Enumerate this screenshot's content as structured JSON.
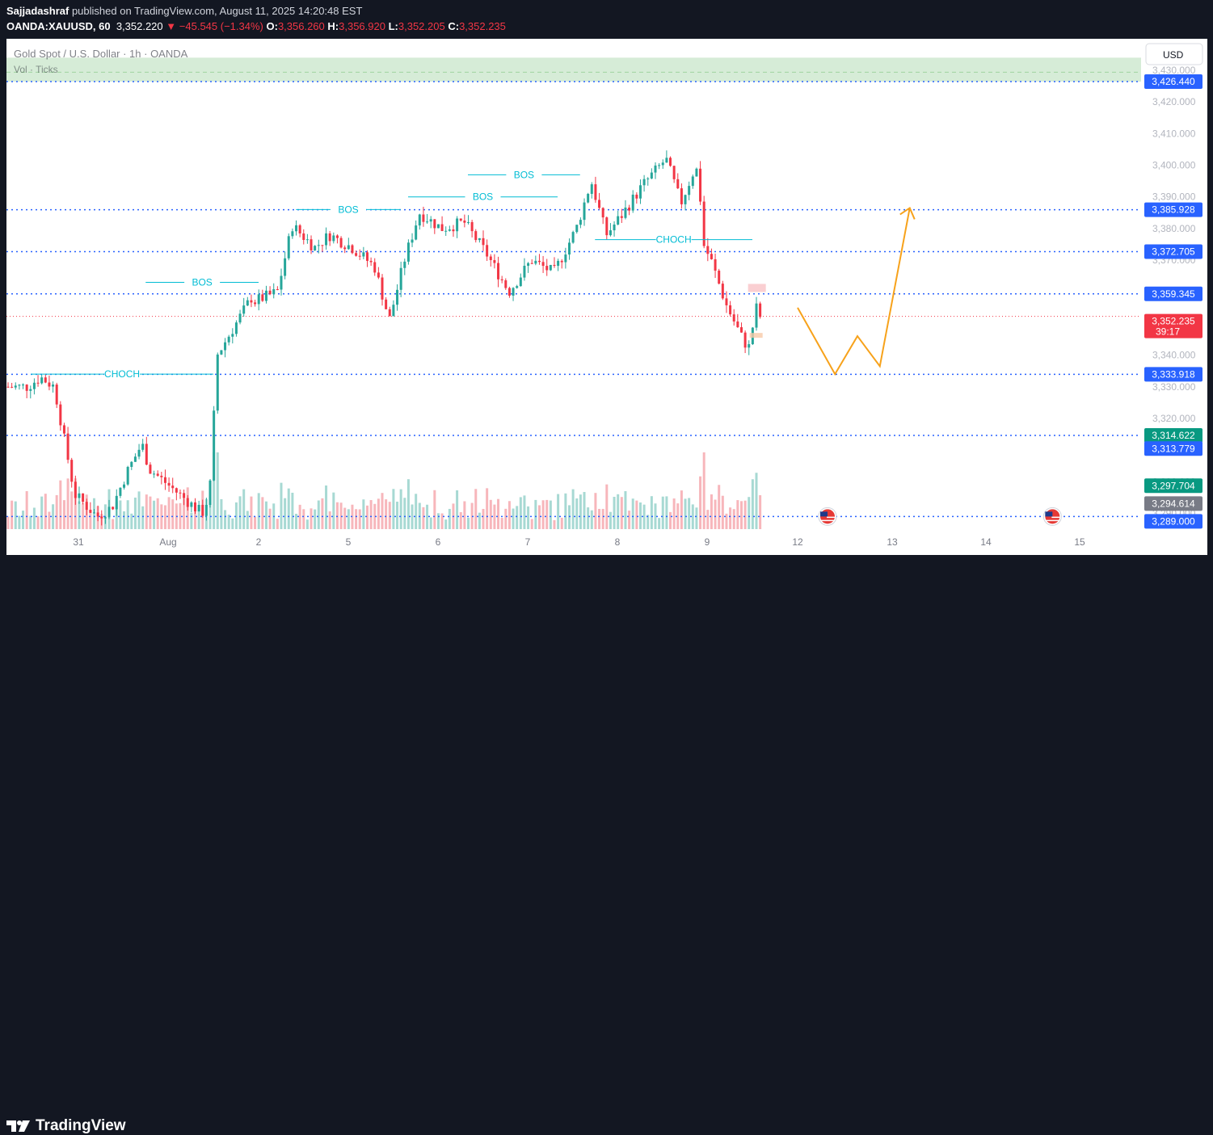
{
  "header": {
    "author": "Sajjadashraf",
    "published_text": "published on TradingView.com, August 11, 2025 14:20:48 EST",
    "symbol": "OANDA:XAUUSD, 60",
    "last": "3,352.220",
    "change": "−45.545 (−1.34%)",
    "open_label": "O:",
    "open": "3,356.260",
    "high_label": "H:",
    "high": "3,356.920",
    "low_label": "L:",
    "low": "3,352.205",
    "close_label": "C:",
    "close": "3,352.235"
  },
  "legend": {
    "title": "Gold Spot / U.S. Dollar · 1h · OANDA",
    "volume": "Vol · Ticks"
  },
  "currency_button": "USD",
  "footer": {
    "brand": "TradingView"
  },
  "colors": {
    "up": "#26a69a",
    "down": "#f23645",
    "level": "#2962ff",
    "projection": "#f7a21b",
    "annotation": "#00bcd4"
  },
  "chart_data": {
    "type": "candlestick",
    "symbol": "XAUUSD",
    "interval": "1h",
    "ylim": [
      3284,
      3437
    ],
    "y_ticks": [
      3290,
      3300,
      3310,
      3320,
      3330,
      3340,
      3350,
      3360,
      3370,
      3380,
      3390,
      3400,
      3410,
      3420,
      3430
    ],
    "x_ticks": [
      "31",
      "Aug",
      "2",
      "5",
      "6",
      "7",
      "8",
      "9",
      "12",
      "13",
      "14",
      "15"
    ],
    "horizontal_levels": [
      {
        "value": 3426.44,
        "label": "3,426.440",
        "color": "#2962ff"
      },
      {
        "value": 3385.928,
        "label": "3,385.928",
        "color": "#2962ff"
      },
      {
        "value": 3372.705,
        "label": "3,372.705",
        "color": "#2962ff"
      },
      {
        "value": 3359.345,
        "label": "3,359.345",
        "color": "#2962ff"
      },
      {
        "value": 3333.918,
        "label": "3,333.918",
        "color": "#2962ff"
      },
      {
        "value": 3314.622,
        "label": "3,314.622",
        "color": "#089981"
      },
      {
        "value": 3289.0,
        "label": "3,289.000",
        "color": "#2962ff"
      }
    ],
    "price_tags": [
      {
        "value": 3352.235,
        "label": "3,352.235",
        "sublabel": "39:17",
        "color": "#f23645"
      },
      {
        "value": 3313.779,
        "label": "3,313.779",
        "color": "#2962ff"
      },
      {
        "value": 3297.704,
        "label": "3,297.704",
        "color": "#089981"
      },
      {
        "value": 3294.614,
        "label": "3,294.614",
        "color": "#787b86"
      }
    ],
    "supply_zone": [
      3426.44,
      3434.0
    ],
    "annotations": [
      {
        "text": "CHOCH",
        "x1": "Jul 30 10:00",
        "x2": "Aug 1 12:00",
        "y": 3334.0
      },
      {
        "text": "BOS",
        "x1": "Jul 31 18:00",
        "x2": "Aug 3 22:00",
        "y": 3363.0
      },
      {
        "text": "BOS",
        "x1": "Aug 4 10:00",
        "x2": "Aug 5 14:00",
        "y": 3386.0
      },
      {
        "text": "BOS",
        "x1": "Aug 5 16:00",
        "x2": "Aug 7 08:00",
        "y": 3390.0
      },
      {
        "text": "BOS",
        "x1": "Aug 6 08:00",
        "x2": "Aug 7 14:00",
        "y": 3397.0
      },
      {
        "text": "CHOCH",
        "x1": "Aug 7 18:00",
        "x2": "Aug 11 12:00",
        "y": 3376.5
      }
    ],
    "projection": {
      "description_points": [
        {
          "x": "Aug 12 00:00",
          "y": 3355.0
        },
        {
          "x": "Aug 12 10:00",
          "y": 3334.0
        },
        {
          "x": "Aug 12 16:00",
          "y": 3346.0
        },
        {
          "x": "Aug 12 22:00",
          "y": 3336.5
        },
        {
          "x": "Aug 13 06:00",
          "y": 3386.5
        }
      ]
    },
    "price_path": [
      [
        "Jul 30 10:00",
        3330
      ],
      [
        "Jul 30 14:00",
        3333
      ],
      [
        "Jul 30 18:00",
        3330
      ],
      [
        "Jul 31 00:00",
        3296
      ],
      [
        "Jul 31 06:00",
        3289
      ],
      [
        "Jul 31 10:00",
        3292
      ],
      [
        "Jul 31 14:00",
        3303
      ],
      [
        "Jul 31 18:00",
        3312
      ],
      [
        "Jul 31 20:00",
        3304
      ],
      [
        "Aug 1 00:00",
        3300
      ],
      [
        "Aug 1 06:00",
        3294
      ],
      [
        "Aug 1 10:00",
        3290
      ],
      [
        "Aug 1 12:00",
        3296
      ],
      [
        "Aug 1 14:00",
        3340
      ],
      [
        "Aug 1 20:00",
        3352
      ],
      [
        "Aug 2 02:00",
        3360
      ],
      [
        "Aug 4 00:00",
        3357
      ],
      [
        "Aug 4 06:00",
        3360
      ],
      [
        "Aug 4 10:00",
        3381
      ],
      [
        "Aug 4 16:00",
        3374
      ],
      [
        "Aug 4 20:00",
        3378
      ],
      [
        "Aug 5 02:00",
        3374
      ],
      [
        "Aug 5 08:00",
        3368
      ],
      [
        "Aug 5 12:00",
        3351
      ],
      [
        "Aug 5 16:00",
        3370
      ],
      [
        "Aug 5 20:00",
        3385
      ],
      [
        "Aug 6 02:00",
        3380
      ],
      [
        "Aug 6 08:00",
        3382
      ],
      [
        "Aug 6 14:00",
        3372
      ],
      [
        "Aug 6 20:00",
        3360
      ],
      [
        "Aug 7 02:00",
        3370
      ],
      [
        "Aug 7 08:00",
        3366
      ],
      [
        "Aug 7 14:00",
        3380
      ],
      [
        "Aug 7 18:00",
        3395
      ],
      [
        "Aug 7 22:00",
        3378
      ],
      [
        "Aug 8 02:00",
        3384
      ],
      [
        "Aug 8 08:00",
        3394
      ],
      [
        "Aug 8 14:00",
        3402
      ],
      [
        "Aug 8 18:00",
        3388
      ],
      [
        "Aug 8 22:00",
        3400
      ],
      [
        "Aug 9 02:00",
        3382
      ],
      [
        "Aug 9 06:00",
        3399
      ],
      [
        "Aug 9 10:00",
        3398
      ],
      [
        "Aug 9 14:00",
        3390
      ],
      [
        "Aug 9 18:00",
        3377
      ],
      [
        "Aug 10 00:00",
        3375
      ],
      [
        "Aug 11 02:00",
        3370
      ],
      [
        "Aug 11 06:00",
        3356
      ],
      [
        "Aug 11 10:00",
        3346
      ],
      [
        "Aug 11 12:00",
        3342
      ],
      [
        "Aug 11 14:00",
        3355
      ],
      [
        "Aug 11 15:00",
        3352.235
      ]
    ]
  }
}
